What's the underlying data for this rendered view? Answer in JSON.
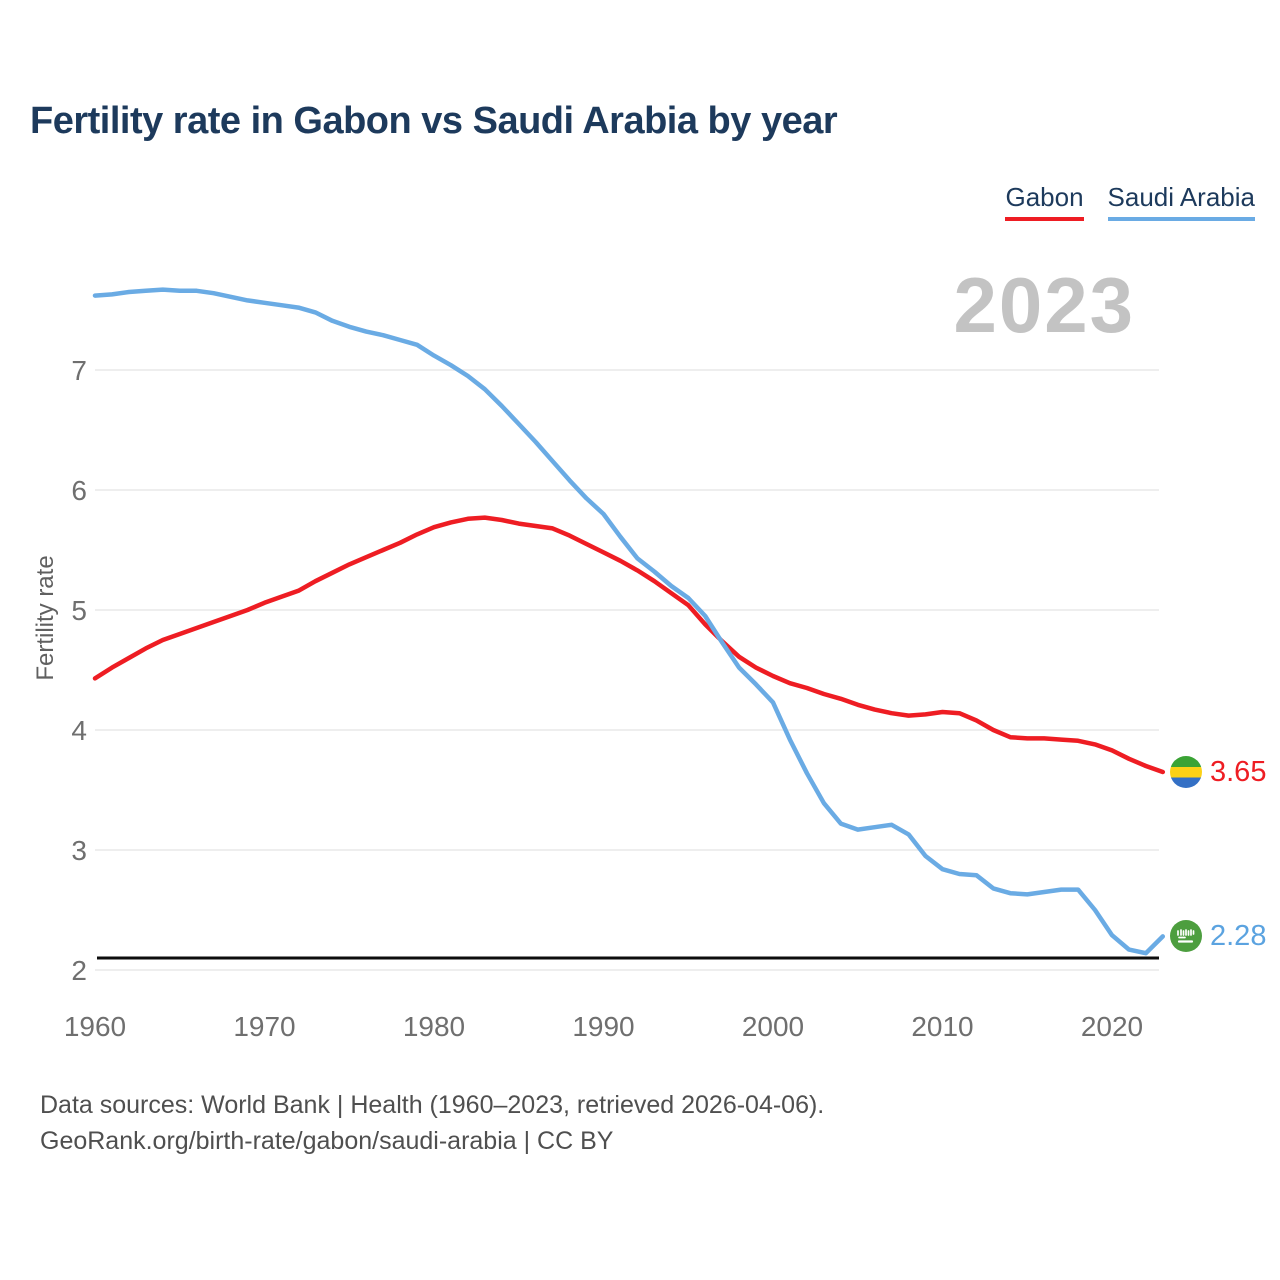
{
  "header": {
    "title": "Fertility rate in Gabon vs Saudi Arabia by year"
  },
  "legend": {
    "items": [
      {
        "label": "Gabon",
        "color": "#ee1d23"
      },
      {
        "label": "Saudi Arabia",
        "color": "#6aabe4"
      }
    ]
  },
  "watermark": "2023",
  "y_axis": {
    "label": "Fertility rate",
    "ticks": [
      2,
      3,
      4,
      5,
      6,
      7
    ]
  },
  "x_axis": {
    "ticks": [
      1960,
      1970,
      1980,
      1990,
      2000,
      2010,
      2020
    ]
  },
  "end_labels": [
    {
      "series": "Gabon",
      "value": "3.65",
      "color": "#ee1d23",
      "flag": "gabon-flag"
    },
    {
      "series": "Saudi Arabia",
      "value": "2.28",
      "color": "#5ba3e0",
      "flag": "saudi-arabia-flag"
    }
  ],
  "footer": {
    "line1": "Data sources: World Bank | Health (1960–2023, retrieved 2026-04-06).",
    "line2": "GeoRank.org/birth-rate/gabon/saudi-arabia | CC BY"
  },
  "colors": {
    "title": "#1d3a5c",
    "tick_text": "#6f6f6f",
    "gridline": "#e9e9e9",
    "replacement_line": "#0d0d0d",
    "watermark": "#c3c3c3",
    "gabon_line": "#ee1d23",
    "saudi_line": "#6aabe4"
  },
  "chart_data": {
    "type": "line",
    "title": "Fertility rate in Gabon vs Saudi Arabia by year",
    "xlabel": "",
    "ylabel": "Fertility rate",
    "xlim": [
      1960,
      2023
    ],
    "ylim": [
      2,
      7.85
    ],
    "grid": true,
    "legend_position": "top-right",
    "annotations": {
      "replacement_level_line": 2.1,
      "watermark_year": "2023"
    },
    "x": [
      1960,
      1961,
      1962,
      1963,
      1964,
      1965,
      1966,
      1967,
      1968,
      1969,
      1970,
      1971,
      1972,
      1973,
      1974,
      1975,
      1976,
      1977,
      1978,
      1979,
      1980,
      1981,
      1982,
      1983,
      1984,
      1985,
      1986,
      1987,
      1988,
      1989,
      1990,
      1991,
      1992,
      1993,
      1994,
      1995,
      1996,
      1997,
      1998,
      1999,
      2000,
      2001,
      2002,
      2003,
      2004,
      2005,
      2006,
      2007,
      2008,
      2009,
      2010,
      2011,
      2012,
      2013,
      2014,
      2015,
      2016,
      2017,
      2018,
      2019,
      2020,
      2021,
      2022,
      2023
    ],
    "series": [
      {
        "name": "Gabon",
        "color": "#ee1d23",
        "end_value": 3.65,
        "values": [
          4.43,
          4.52,
          4.6,
          4.68,
          4.75,
          4.8,
          4.85,
          4.9,
          4.95,
          5.0,
          5.06,
          5.11,
          5.16,
          5.24,
          5.31,
          5.38,
          5.44,
          5.5,
          5.56,
          5.63,
          5.69,
          5.73,
          5.76,
          5.77,
          5.75,
          5.72,
          5.7,
          5.68,
          5.62,
          5.55,
          5.48,
          5.41,
          5.33,
          5.24,
          5.14,
          5.04,
          4.88,
          4.74,
          4.61,
          4.52,
          4.45,
          4.39,
          4.35,
          4.3,
          4.26,
          4.21,
          4.17,
          4.14,
          4.12,
          4.13,
          4.15,
          4.14,
          4.08,
          4.0,
          3.94,
          3.93,
          3.93,
          3.92,
          3.91,
          3.88,
          3.83,
          3.76,
          3.7,
          3.65
        ]
      },
      {
        "name": "Saudi Arabia",
        "color": "#6aabe4",
        "end_value": 2.28,
        "values": [
          7.62,
          7.63,
          7.65,
          7.66,
          7.67,
          7.66,
          7.66,
          7.64,
          7.61,
          7.58,
          7.56,
          7.54,
          7.52,
          7.48,
          7.41,
          7.36,
          7.32,
          7.29,
          7.25,
          7.21,
          7.12,
          7.04,
          6.95,
          6.84,
          6.7,
          6.55,
          6.4,
          6.24,
          6.08,
          5.93,
          5.8,
          5.61,
          5.43,
          5.32,
          5.2,
          5.1,
          4.95,
          4.73,
          4.52,
          4.38,
          4.23,
          3.92,
          3.64,
          3.39,
          3.22,
          3.17,
          3.19,
          3.21,
          3.13,
          2.95,
          2.84,
          2.8,
          2.79,
          2.68,
          2.64,
          2.63,
          2.65,
          2.67,
          2.67,
          2.5,
          2.29,
          2.17,
          2.14,
          2.28
        ]
      }
    ]
  }
}
